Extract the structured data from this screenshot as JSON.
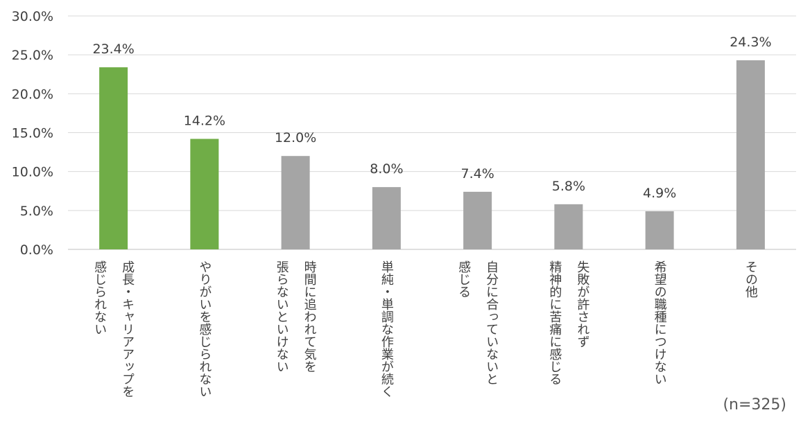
{
  "chart_data": {
    "type": "bar",
    "categories": [
      [
        "成長・キャリアアップを",
        "感じられない"
      ],
      [
        "やりがいを感じられない"
      ],
      [
        "時間に追われて気を",
        "張らないといけない"
      ],
      [
        "単純・単調な作業が続く"
      ],
      [
        "自分に合っていないと",
        "感じる"
      ],
      [
        "失敗が許されず",
        "精神的に苦痛に感じる"
      ],
      [
        "希望の職種につけない"
      ],
      [
        "その他"
      ]
    ],
    "values": [
      23.4,
      14.2,
      12.0,
      8.0,
      7.4,
      5.8,
      4.9,
      24.3
    ],
    "data_labels": [
      "23.4%",
      "14.2%",
      "12.0%",
      "8.0%",
      "7.4%",
      "5.8%",
      "4.9%",
      "24.3%"
    ],
    "colors": [
      "#70ad47",
      "#70ad47",
      "#a5a5a5",
      "#a5a5a5",
      "#a5a5a5",
      "#a5a5a5",
      "#a5a5a5",
      "#a5a5a5"
    ],
    "y_ticks": [
      "0.0%",
      "5.0%",
      "10.0%",
      "15.0%",
      "20.0%",
      "25.0%",
      "30.0%"
    ],
    "ylim": [
      0,
      30
    ],
    "grid": true,
    "title": "",
    "xlabel": "",
    "ylabel": ""
  },
  "note": "(n=325)"
}
